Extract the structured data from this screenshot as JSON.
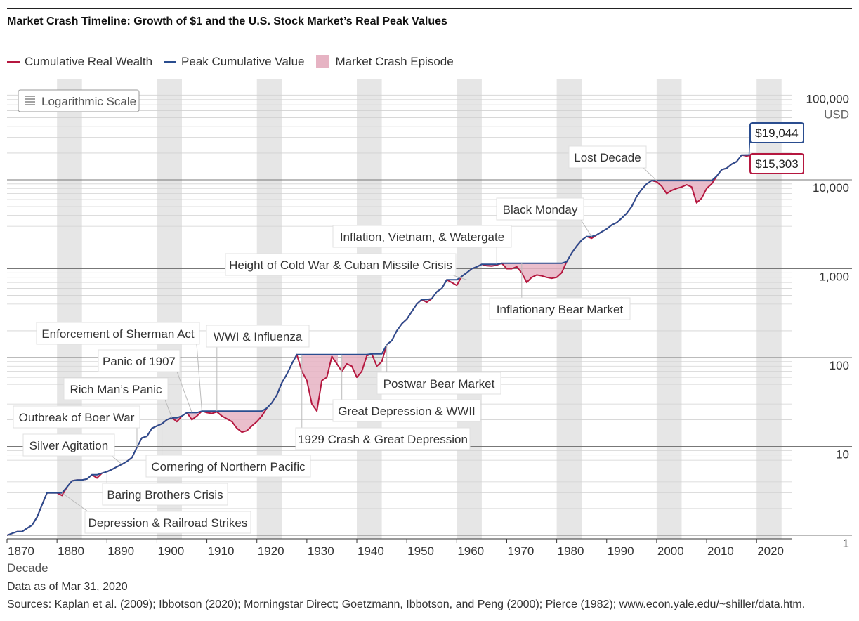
{
  "title": "Market Crash Timeline: Growth of $1 and the U.S. Stock Market’s Real Peak Values",
  "legend": {
    "wealth": "Cumulative Real Wealth",
    "peak": "Peak Cumulative Value",
    "crash": "Market Crash Episode"
  },
  "scale_button": "Logarithmic Scale",
  "colors": {
    "wealth": "#b5173f",
    "peak": "#2a4d8f",
    "crash": "#e6b3c3",
    "band": "#e6e6e6",
    "end_wealth_label": "#b5173f",
    "end_peak_label": "#2a4d8f"
  },
  "footer": {
    "asof": "Data as of Mar 31, 2020",
    "sources": "Sources: Kaplan et al. (2009); Ibbotson (2020); Morningstar Direct; Goetzmann, Ibbotson, and Peng (2000); Pierce (1982); www.econ.yale.edu/~shiller/data.htm."
  },
  "chart_data": {
    "type": "line",
    "title": "Market Crash Timeline: Growth of $1 and the U.S. Stock Market’s Real Peak Values",
    "xlabel": "Decade",
    "ylabel": "USD",
    "log_scale": true,
    "grid": true,
    "legend_position": "top-left",
    "xlim": [
      1870,
      2027
    ],
    "ylim": [
      0.9,
      100000
    ],
    "x_ticks": [
      1870,
      1880,
      1890,
      1900,
      1910,
      1920,
      1930,
      1940,
      1950,
      1960,
      1970,
      1980,
      1990,
      2000,
      2010,
      2020
    ],
    "y_ticks": [
      {
        "value": 1,
        "label": "1"
      },
      {
        "value": 10,
        "label": "10"
      },
      {
        "value": 100,
        "label": "100"
      },
      {
        "value": 1000,
        "label": "1,000"
      },
      {
        "value": 10000,
        "label": "10,000"
      },
      {
        "value": 100000,
        "label": "100,000"
      }
    ],
    "series": [
      {
        "name": "Cumulative Real Wealth",
        "x": [
          1870,
          1871,
          1872,
          1873,
          1874,
          1875,
          1876,
          1877,
          1878,
          1879,
          1880,
          1881,
          1882,
          1883,
          1884,
          1885,
          1886,
          1887,
          1888,
          1889,
          1890,
          1891,
          1892,
          1893,
          1894,
          1895,
          1896,
          1897,
          1898,
          1899,
          1900,
          1901,
          1902,
          1903,
          1904,
          1905,
          1906,
          1907,
          1908,
          1909,
          1910,
          1911,
          1912,
          1913,
          1914,
          1915,
          1916,
          1917,
          1918,
          1919,
          1920,
          1921,
          1922,
          1923,
          1924,
          1925,
          1926,
          1927,
          1928,
          1929,
          1930,
          1931,
          1932,
          1933,
          1934,
          1935,
          1936,
          1937,
          1938,
          1939,
          1940,
          1941,
          1942,
          1943,
          1944,
          1945,
          1946,
          1947,
          1948,
          1949,
          1950,
          1951,
          1952,
          1953,
          1954,
          1955,
          1956,
          1957,
          1958,
          1959,
          1960,
          1961,
          1962,
          1963,
          1964,
          1965,
          1966,
          1967,
          1968,
          1969,
          1970,
          1971,
          1972,
          1973,
          1974,
          1975,
          1976,
          1977,
          1978,
          1979,
          1980,
          1981,
          1982,
          1983,
          1984,
          1985,
          1986,
          1987,
          1988,
          1989,
          1990,
          1991,
          1992,
          1993,
          1994,
          1995,
          1996,
          1997,
          1998,
          1999,
          2000,
          2001,
          2002,
          2003,
          2004,
          2005,
          2006,
          2007,
          2008,
          2009,
          2010,
          2011,
          2012,
          2013,
          2014,
          2015,
          2016,
          2017,
          2018,
          2019,
          2020
        ],
        "values": [
          1.0,
          1.05,
          1.1,
          1.1,
          1.2,
          1.3,
          1.6,
          2.2,
          3.0,
          3.0,
          3.0,
          2.8,
          3.5,
          4.1,
          4.2,
          4.2,
          4.3,
          4.8,
          4.4,
          5.0,
          5.2,
          5.5,
          5.9,
          6.3,
          6.8,
          7.5,
          9.8,
          12.5,
          13.0,
          16.0,
          17.0,
          18.0,
          20.0,
          21.0,
          19.0,
          22.0,
          24.0,
          20.0,
          22.0,
          25.0,
          24.0,
          23.5,
          24.5,
          22.0,
          20.5,
          19.0,
          16.0,
          14.5,
          15.0,
          17.0,
          19.0,
          22.0,
          27.0,
          31.0,
          38.0,
          52.0,
          65.0,
          85.0,
          108.0,
          70.0,
          55.0,
          30.0,
          25.0,
          55.0,
          60.0,
          103.0,
          85.0,
          70.0,
          85.0,
          80.0,
          60.0,
          70.0,
          105.0,
          110.0,
          80.0,
          90.0,
          140.0,
          155.0,
          200.0,
          240.0,
          270.0,
          330.0,
          400.0,
          450.0,
          420.0,
          460.0,
          550.0,
          600.0,
          750.0,
          700.0,
          650.0,
          820.0,
          900.0,
          1000.0,
          1050.0,
          1120.0,
          1080.0,
          1070.0,
          1100.0,
          1150.0,
          1000.0,
          1000.0,
          1050.0,
          900.0,
          700.0,
          800.0,
          850.0,
          830.0,
          800.0,
          780.0,
          800.0,
          900.0,
          1200.0,
          1500.0,
          1800.0,
          2100.0,
          2300.0,
          2200.0,
          2400.0,
          2600.0,
          2800.0,
          3100.0,
          3300.0,
          3700.0,
          4200.0,
          5000.0,
          6500.0,
          7800.0,
          9000.0,
          9800.0,
          9500.0,
          8500.0,
          7000.0,
          7600.0,
          8000.0,
          8300.0,
          8800.0,
          8300.0,
          5500.0,
          6200.0,
          8000.0,
          9000.0,
          11000.0,
          13000.0,
          13500.0,
          15000.0,
          16000.0,
          19000.0,
          18500.0,
          19044.0,
          15303.0
        ]
      },
      {
        "name": "Peak Cumulative Value",
        "x": [
          1870,
          1871,
          1872,
          1873,
          1874,
          1875,
          1876,
          1877,
          1878,
          1879,
          1880,
          1881,
          1882,
          1883,
          1884,
          1885,
          1886,
          1887,
          1888,
          1889,
          1890,
          1891,
          1892,
          1893,
          1894,
          1895,
          1896,
          1897,
          1898,
          1899,
          1900,
          1901,
          1902,
          1903,
          1904,
          1905,
          1906,
          1907,
          1908,
          1909,
          1910,
          1911,
          1912,
          1913,
          1914,
          1915,
          1916,
          1917,
          1918,
          1919,
          1920,
          1921,
          1922,
          1923,
          1924,
          1925,
          1926,
          1927,
          1928,
          1929,
          1930,
          1931,
          1932,
          1933,
          1934,
          1935,
          1936,
          1937,
          1938,
          1939,
          1940,
          1941,
          1942,
          1943,
          1944,
          1945,
          1946,
          1947,
          1948,
          1949,
          1950,
          1951,
          1952,
          1953,
          1954,
          1955,
          1956,
          1957,
          1958,
          1959,
          1960,
          1961,
          1962,
          1963,
          1964,
          1965,
          1966,
          1967,
          1968,
          1969,
          1970,
          1971,
          1972,
          1973,
          1974,
          1975,
          1976,
          1977,
          1978,
          1979,
          1980,
          1981,
          1982,
          1983,
          1984,
          1985,
          1986,
          1987,
          1988,
          1989,
          1990,
          1991,
          1992,
          1993,
          1994,
          1995,
          1996,
          1997,
          1998,
          1999,
          2000,
          2001,
          2002,
          2003,
          2004,
          2005,
          2006,
          2007,
          2008,
          2009,
          2010,
          2011,
          2012,
          2013,
          2014,
          2015,
          2016,
          2017,
          2018,
          2019,
          2020
        ],
        "values": [
          1.0,
          1.05,
          1.1,
          1.1,
          1.2,
          1.3,
          1.6,
          2.2,
          3.0,
          3.0,
          3.0,
          3.0,
          3.5,
          4.1,
          4.2,
          4.2,
          4.3,
          4.8,
          4.8,
          5.0,
          5.2,
          5.5,
          5.9,
          6.3,
          6.8,
          7.5,
          9.8,
          12.5,
          13.0,
          16.0,
          17.0,
          18.0,
          20.0,
          21.0,
          21.0,
          22.0,
          24.0,
          24.0,
          24.0,
          25.0,
          25.0,
          25.0,
          25.0,
          25.0,
          25.0,
          25.0,
          25.0,
          25.0,
          25.0,
          25.0,
          25.0,
          25.0,
          27.0,
          31.0,
          38.0,
          52.0,
          65.0,
          85.0,
          108.0,
          108.0,
          108.0,
          108.0,
          108.0,
          108.0,
          108.0,
          108.0,
          108.0,
          108.0,
          108.0,
          108.0,
          108.0,
          108.0,
          108.0,
          110.0,
          110.0,
          110.0,
          140.0,
          155.0,
          200.0,
          240.0,
          270.0,
          330.0,
          400.0,
          450.0,
          450.0,
          460.0,
          550.0,
          600.0,
          750.0,
          750.0,
          750.0,
          820.0,
          900.0,
          1000.0,
          1050.0,
          1120.0,
          1120.0,
          1120.0,
          1120.0,
          1150.0,
          1150.0,
          1150.0,
          1150.0,
          1150.0,
          1150.0,
          1150.0,
          1150.0,
          1150.0,
          1150.0,
          1150.0,
          1150.0,
          1150.0,
          1200.0,
          1500.0,
          1800.0,
          2100.0,
          2300.0,
          2300.0,
          2400.0,
          2600.0,
          2800.0,
          3100.0,
          3300.0,
          3700.0,
          4200.0,
          5000.0,
          6500.0,
          7800.0,
          9000.0,
          9800.0,
          9800.0,
          9800.0,
          9800.0,
          9800.0,
          9800.0,
          9800.0,
          9800.0,
          9800.0,
          9800.0,
          9800.0,
          9800.0,
          9800.0,
          11000.0,
          13000.0,
          13500.0,
          15000.0,
          16000.0,
          19000.0,
          19044.0,
          19044.0,
          19044.0
        ]
      }
    ],
    "end_labels": [
      {
        "series": "Peak Cumulative Value",
        "text": "$19,044",
        "value": 19044
      },
      {
        "series": "Cumulative Real Wealth",
        "text": "$15,303",
        "value": 15303
      }
    ],
    "crash_episodes": [
      {
        "start": 1880.5,
        "end": 1882.5
      },
      {
        "start": 1883.3,
        "end": 1885.8
      },
      {
        "start": 1887.0,
        "end": 1889.0
      },
      {
        "start": 1890.0,
        "end": 1891.5
      },
      {
        "start": 1893.0,
        "end": 1894.5
      },
      {
        "start": 1895.5,
        "end": 1896.5
      },
      {
        "start": 1896.7,
        "end": 1897.4
      },
      {
        "start": 1903.0,
        "end": 1905.0
      },
      {
        "start": 1906.0,
        "end": 1908.5
      },
      {
        "start": 1909.5,
        "end": 1921.5
      },
      {
        "start": 1929.0,
        "end": 1936.2
      },
      {
        "start": 1937.0,
        "end": 1942.8
      },
      {
        "start": 1946.0,
        "end": 1949.5
      },
      {
        "start": 1961.5,
        "end": 1963.5
      },
      {
        "start": 1966.0,
        "end": 1968.0
      },
      {
        "start": 1968.8,
        "end": 1982.7
      },
      {
        "start": 1987.5,
        "end": 1989.0
      },
      {
        "start": 2000.0,
        "end": 2013.0
      },
      {
        "start": 2018.0,
        "end": 2020.2
      }
    ],
    "annotations": [
      {
        "text": "Depression & Railroad Strikes",
        "year": 1881,
        "value": 3.0
      },
      {
        "text": "Baring Brothers Crisis",
        "year": 1890,
        "value": 5.2
      },
      {
        "text": "Silver Agitation",
        "year": 1893,
        "value": 6.3
      },
      {
        "text": "Outbreak of Boer War",
        "year": 1896,
        "value": 9.8
      },
      {
        "text": "Cornering of Northern Pacific",
        "year": 1901,
        "value": 18.0
      },
      {
        "text": "Rich Man’s Panic",
        "year": 1903,
        "value": 21.0
      },
      {
        "text": "Panic of 1907",
        "year": 1907,
        "value": 24.0
      },
      {
        "text": "Enforcement of Sherman Act",
        "year": 1909,
        "value": 25.0
      },
      {
        "text": "WWI & Influenza",
        "year": 1912,
        "value": 25.0
      },
      {
        "text": "1929 Crash & Great Depression",
        "year": 1929,
        "value": 108.0
      },
      {
        "text": "Great Depression & WWII",
        "year": 1937,
        "value": 108.0
      },
      {
        "text": "Postwar Bear Market",
        "year": 1946,
        "value": 140.0
      },
      {
        "text": "Height of Cold War & Cuban Missile Crisis",
        "year": 1962,
        "value": 750.0
      },
      {
        "text": "Inflation, Vietnam, & Watergate",
        "year": 1968,
        "value": 1120.0
      },
      {
        "text": "Inflationary Bear Market",
        "year": 1973,
        "value": 1150.0
      },
      {
        "text": "Black Monday",
        "year": 1987,
        "value": 2300.0
      },
      {
        "text": "Lost Decade",
        "year": 2000,
        "value": 9800.0
      }
    ]
  }
}
